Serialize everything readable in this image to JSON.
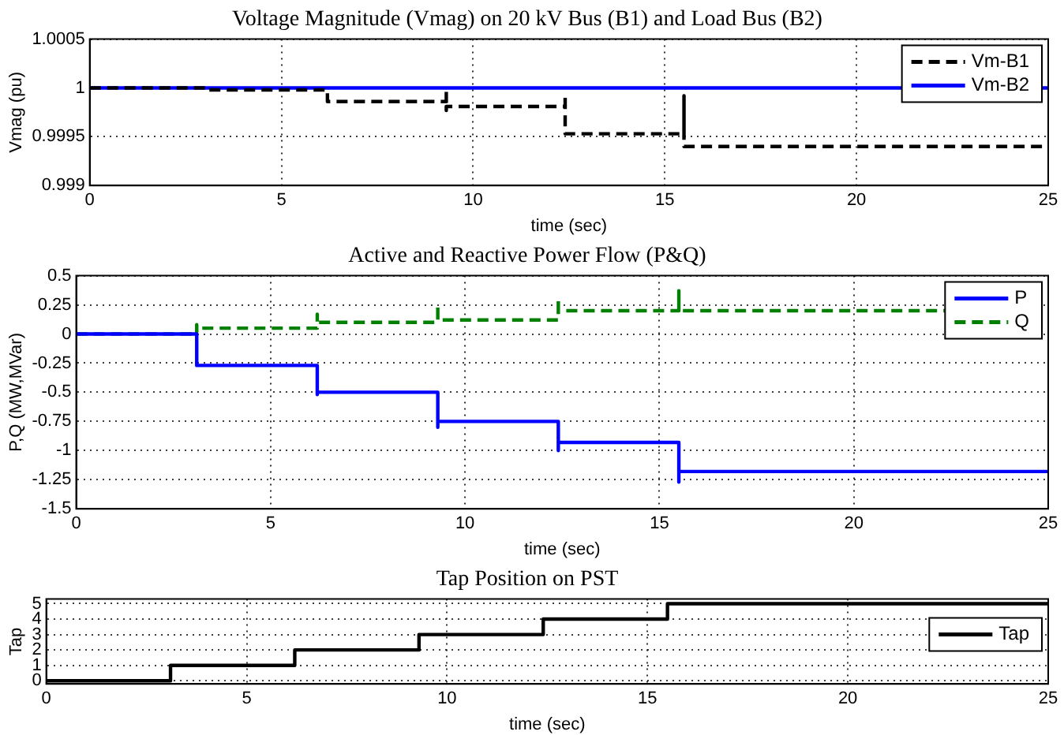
{
  "chart_data": [
    {
      "type": "line",
      "title": "Voltage Magnitude (Vmag) on 20 kV Bus (B1) and Load Bus (B2)",
      "xlabel": "time (sec)",
      "ylabel": "Vmag (pu)",
      "xlim": [
        0,
        25
      ],
      "xticks": [
        0,
        5,
        10,
        15,
        20,
        25
      ],
      "ylim": [
        0.999,
        1.0005
      ],
      "yticks": [
        0.999,
        0.9995,
        1,
        1.0005
      ],
      "grid": true,
      "legend": "top right",
      "marker": "none",
      "series": [
        {
          "name": "Vm-B1",
          "color": "#000000",
          "line_style": "dashed",
          "x": [
            0,
            3.1,
            3.1,
            6.2,
            6.2,
            9.3,
            9.3,
            9.3,
            9.3,
            12.4,
            12.4,
            12.4,
            15.5,
            15.5,
            15.5,
            25
          ],
          "values": [
            1,
            1,
            0.99998,
            0.99998,
            0.99986,
            0.99986,
            0.99997,
            0.99977,
            0.99981,
            0.99981,
            0.99993,
            0.99953,
            0.99953,
            0.99992,
            0.9994,
            0.9994
          ]
        },
        {
          "name": "Vm-B2",
          "color": "#0000ff",
          "line_style": "solid",
          "x": [
            0,
            25
          ],
          "values": [
            1,
            1
          ]
        }
      ]
    },
    {
      "type": "line",
      "title": "Active and Reactive Power Flow (P&Q)",
      "xlabel": "time (sec)",
      "ylabel": "P,Q (MW,MVar)",
      "xlim": [
        0,
        25
      ],
      "xticks": [
        0,
        5,
        10,
        15,
        20,
        25
      ],
      "ylim": [
        -1.5,
        0.5
      ],
      "yticks": [
        -1.5,
        -1.25,
        -1,
        -0.75,
        -0.5,
        -0.25,
        0,
        0.25,
        0.5
      ],
      "grid": true,
      "legend": "top right",
      "marker": "none",
      "series": [
        {
          "name": "P",
          "color": "#0000ff",
          "line_style": "solid",
          "x": [
            0,
            3.1,
            3.1,
            6.2,
            6.2,
            6.2,
            9.3,
            9.3,
            9.3,
            12.4,
            12.4,
            12.4,
            15.5,
            15.5,
            15.5,
            25
          ],
          "values": [
            0,
            0,
            -0.27,
            -0.27,
            -0.52,
            -0.5,
            -0.5,
            -0.8,
            -0.75,
            -0.75,
            -1.0,
            -0.93,
            -0.93,
            -1.27,
            -1.18,
            -1.18
          ]
        },
        {
          "name": "Q",
          "color": "#008000",
          "line_style": "dashed",
          "x": [
            0,
            3.1,
            3.1,
            3.1,
            6.2,
            6.2,
            6.2,
            9.3,
            9.3,
            9.3,
            12.4,
            12.4,
            12.4,
            15.5,
            15.5,
            15.5,
            25
          ],
          "values": [
            0,
            0,
            0.08,
            0.05,
            0.05,
            0.17,
            0.1,
            0.1,
            0.25,
            0.12,
            0.12,
            0.3,
            0.2,
            0.2,
            0.37,
            0.2,
            0.2
          ]
        }
      ]
    },
    {
      "type": "line",
      "title": "Tap Position on PST",
      "xlabel": "time (sec)",
      "ylabel": "Tap",
      "xlim": [
        0,
        25
      ],
      "xticks": [
        0,
        5,
        10,
        15,
        20,
        25
      ],
      "ylim": [
        -0.2,
        5.3
      ],
      "yticks": [
        0,
        1,
        2,
        3,
        4,
        5
      ],
      "grid": true,
      "legend": "top right",
      "marker": "none",
      "series": [
        {
          "name": "Tap",
          "color": "#000000",
          "line_style": "solid",
          "x": [
            0,
            3.1,
            3.1,
            6.2,
            6.2,
            9.3,
            9.3,
            12.4,
            12.4,
            15.5,
            15.5,
            25
          ],
          "values": [
            0,
            0,
            1,
            1,
            2,
            2,
            3,
            3,
            4,
            4,
            5,
            5
          ]
        }
      ]
    }
  ]
}
